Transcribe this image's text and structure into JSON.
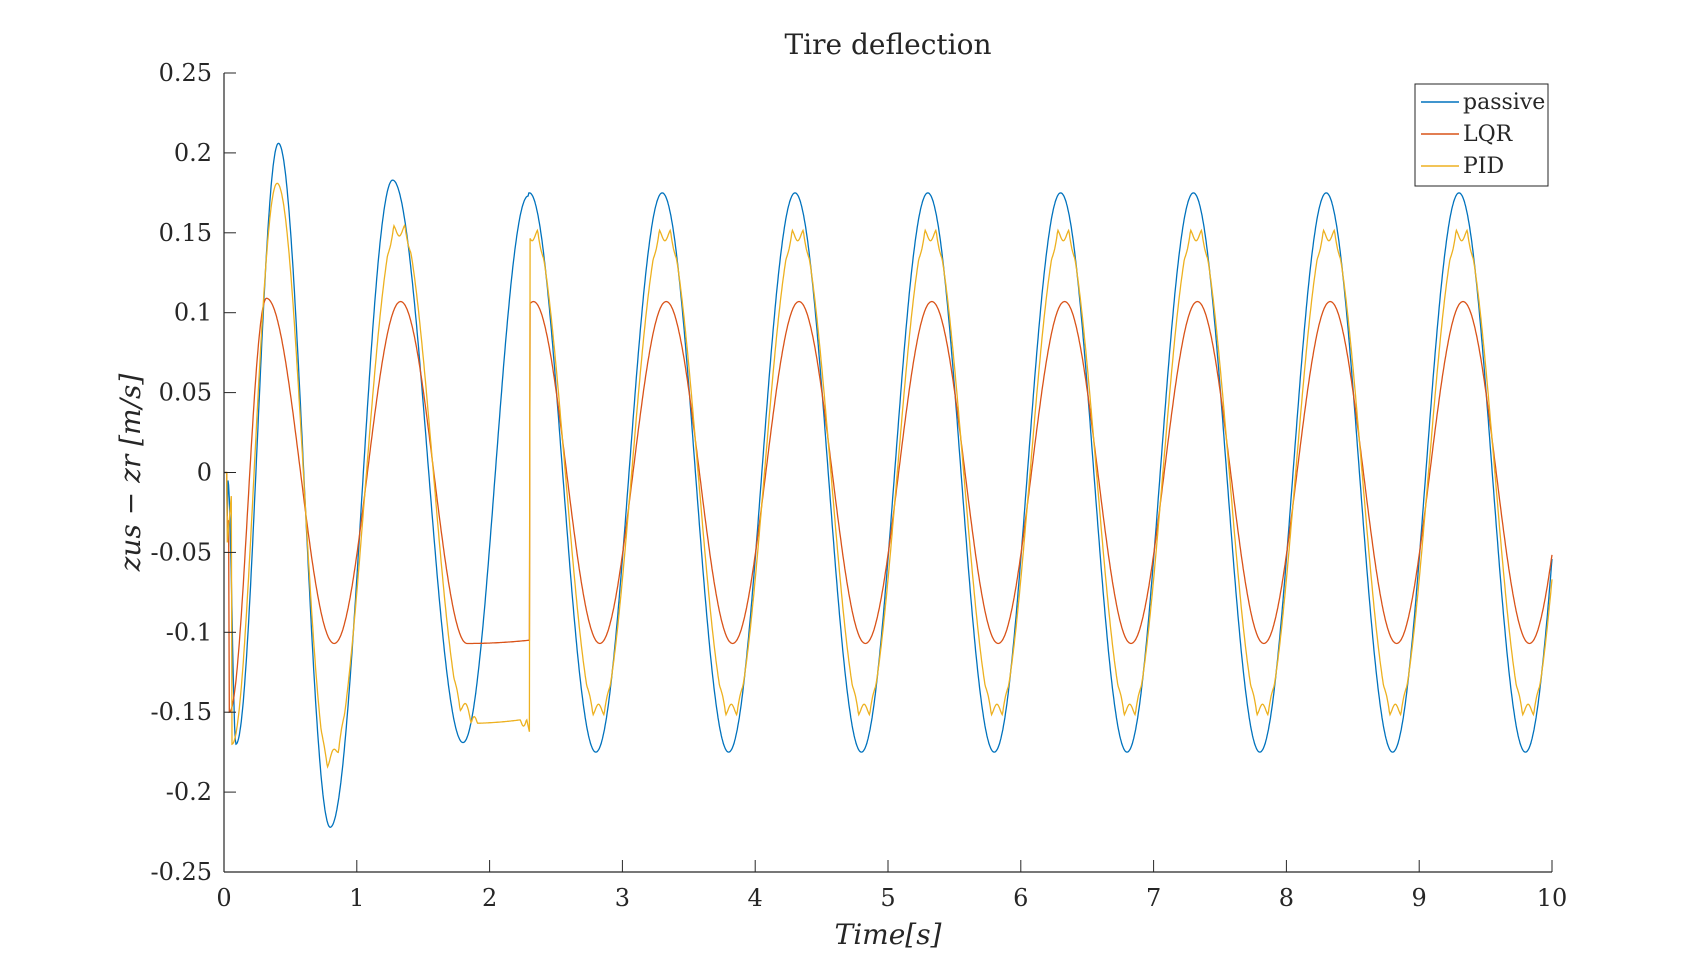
{
  "chart_data": {
    "type": "line",
    "title": "Tire deflection",
    "xlabel": "Time[s]",
    "ylabel": "zus − zr [m/s]",
    "xlim": [
      0,
      10
    ],
    "ylim": [
      -0.25,
      0.25
    ],
    "xticks": [
      "0",
      "1",
      "2",
      "3",
      "4",
      "5",
      "6",
      "7",
      "8",
      "9",
      "10"
    ],
    "yticks": [
      "0.25",
      "0.2",
      "0.15",
      "0.1",
      "0.05",
      "0",
      "-0.05",
      "-0.1",
      "-0.15",
      "-0.2",
      "-0.25"
    ],
    "grid": false,
    "legend_position": "top-right",
    "signal": {
      "frequency_hz": 1.0,
      "duration_s": 10
    },
    "series": [
      {
        "name": "passive",
        "color": "#0072BD",
        "amplitude_steady": 0.175,
        "peaks": [
          {
            "x": 0.03,
            "y": -0.005
          },
          {
            "x": 0.09,
            "y": -0.17
          },
          {
            "x": 0.41,
            "y": 0.206
          },
          {
            "x": 0.8,
            "y": -0.222
          },
          {
            "x": 1.27,
            "y": 0.183
          },
          {
            "x": 1.8,
            "y": -0.169
          },
          {
            "x": 2.29,
            "y": 0.173
          },
          {
            "x": 2.8,
            "y": -0.175
          },
          {
            "x": 3.3,
            "y": 0.175
          },
          {
            "x": 9.3,
            "y": 0.175
          },
          {
            "x": 9.8,
            "y": -0.175
          },
          {
            "x": 10.0,
            "y": -0.046
          }
        ]
      },
      {
        "name": "LQR",
        "color": "#D95319",
        "amplitude_steady": 0.107,
        "peaks": [
          {
            "x": 0.04,
            "y": -0.15
          },
          {
            "x": 0.32,
            "y": 0.109
          },
          {
            "x": 0.83,
            "y": -0.107
          },
          {
            "x": 1.33,
            "y": 0.107
          },
          {
            "x": 1.83,
            "y": -0.107
          },
          {
            "x": 9.33,
            "y": 0.107
          },
          {
            "x": 9.83,
            "y": -0.107
          },
          {
            "x": 10.0,
            "y": -0.06
          }
        ]
      },
      {
        "name": "PID",
        "color": "#EDB120",
        "amplitude_steady": 0.157,
        "peaks": [
          {
            "x": 0.06,
            "y": -0.17
          },
          {
            "x": 0.4,
            "y": 0.181
          },
          {
            "x": 0.8,
            "y": -0.187
          },
          {
            "x": 1.32,
            "y": 0.16
          },
          {
            "x": 1.83,
            "y": -0.157
          },
          {
            "x": 9.32,
            "y": 0.157
          },
          {
            "x": 9.83,
            "y": -0.157
          },
          {
            "x": 10.0,
            "y": -0.05
          }
        ]
      }
    ]
  }
}
